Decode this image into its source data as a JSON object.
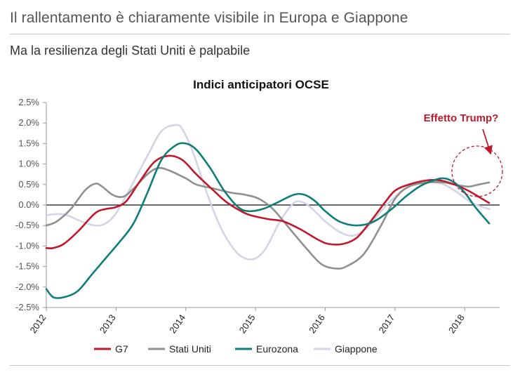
{
  "header": {
    "title": "Il rallentamento è chiaramente visibile in Europa e Giappone",
    "subtitle": "Ma la resilienza degli Stati Uniti è palpabile"
  },
  "chart_data": {
    "type": "line",
    "title": "Indici anticipatori OCSE",
    "xlabel": "",
    "ylabel": "",
    "ylim": [
      -2.5,
      2.5
    ],
    "xlim": [
      2012,
      2018.5
    ],
    "y_ticks": [
      2.5,
      2.0,
      1.5,
      1.0,
      0.5,
      0.0,
      -0.5,
      -1.0,
      -1.5,
      -2.0,
      -2.5
    ],
    "y_tick_labels": [
      "2.5%",
      "2.0%",
      "1.5%",
      "1.0%",
      "0.5%",
      "0.0%",
      "-0.5%",
      "-1.0%",
      "-1.5%",
      "-2.0%",
      "-2.5%"
    ],
    "x_ticks": [
      2012,
      2013,
      2014,
      2015,
      2016,
      2017,
      2018
    ],
    "x_tick_labels": [
      "2012",
      "2013",
      "2014",
      "2015",
      "2016",
      "2017",
      "2018"
    ],
    "annotation": {
      "text": "Effetto Trump?",
      "target": {
        "x": 2018.3,
        "y": 0.55
      }
    },
    "series": [
      {
        "name": "G7",
        "color": "#c0182c",
        "points": [
          [
            2012.0,
            -1.05
          ],
          [
            2012.1,
            -1.05
          ],
          [
            2012.25,
            -0.95
          ],
          [
            2012.45,
            -0.65
          ],
          [
            2012.7,
            -0.2
          ],
          [
            2012.85,
            -0.1
          ],
          [
            2013.0,
            -0.05
          ],
          [
            2013.15,
            0.1
          ],
          [
            2013.35,
            0.6
          ],
          [
            2013.55,
            1.05
          ],
          [
            2013.75,
            1.2
          ],
          [
            2013.95,
            1.1
          ],
          [
            2014.15,
            0.75
          ],
          [
            2014.4,
            0.35
          ],
          [
            2014.6,
            0.05
          ],
          [
            2014.85,
            -0.2
          ],
          [
            2015.0,
            -0.28
          ],
          [
            2015.2,
            -0.35
          ],
          [
            2015.4,
            -0.4
          ],
          [
            2015.65,
            -0.6
          ],
          [
            2015.9,
            -0.85
          ],
          [
            2016.05,
            -0.95
          ],
          [
            2016.25,
            -0.95
          ],
          [
            2016.45,
            -0.8
          ],
          [
            2016.65,
            -0.4
          ],
          [
            2016.85,
            0.05
          ],
          [
            2017.0,
            0.35
          ],
          [
            2017.2,
            0.5
          ],
          [
            2017.45,
            0.6
          ],
          [
            2017.65,
            0.6
          ],
          [
            2017.85,
            0.5
          ],
          [
            2018.05,
            0.35
          ],
          [
            2018.2,
            0.2
          ],
          [
            2018.3,
            0.1
          ],
          [
            2018.35,
            0.05
          ]
        ]
      },
      {
        "name": "Stati Uniti",
        "color": "#909090",
        "points": [
          [
            2012.0,
            -0.5
          ],
          [
            2012.15,
            -0.4
          ],
          [
            2012.35,
            -0.1
          ],
          [
            2012.55,
            0.35
          ],
          [
            2012.7,
            0.52
          ],
          [
            2012.8,
            0.45
          ],
          [
            2012.95,
            0.25
          ],
          [
            2013.1,
            0.2
          ],
          [
            2013.25,
            0.4
          ],
          [
            2013.45,
            0.75
          ],
          [
            2013.6,
            0.9
          ],
          [
            2013.75,
            0.85
          ],
          [
            2014.0,
            0.65
          ],
          [
            2014.15,
            0.5
          ],
          [
            2014.4,
            0.4
          ],
          [
            2014.65,
            0.3
          ],
          [
            2014.85,
            0.25
          ],
          [
            2015.05,
            0.15
          ],
          [
            2015.25,
            -0.1
          ],
          [
            2015.5,
            -0.6
          ],
          [
            2015.75,
            -1.1
          ],
          [
            2015.95,
            -1.45
          ],
          [
            2016.15,
            -1.55
          ],
          [
            2016.3,
            -1.5
          ],
          [
            2016.55,
            -1.2
          ],
          [
            2016.8,
            -0.5
          ],
          [
            2017.0,
            0.15
          ],
          [
            2017.2,
            0.45
          ],
          [
            2017.45,
            0.55
          ],
          [
            2017.7,
            0.55
          ],
          [
            2017.85,
            0.5
          ],
          [
            2018.05,
            0.45
          ],
          [
            2018.2,
            0.5
          ],
          [
            2018.35,
            0.55
          ]
        ]
      },
      {
        "name": "Eurozona",
        "color": "#0f7d78",
        "points": [
          [
            2012.0,
            -2.05
          ],
          [
            2012.1,
            -2.25
          ],
          [
            2012.25,
            -2.25
          ],
          [
            2012.45,
            -2.1
          ],
          [
            2012.65,
            -1.7
          ],
          [
            2012.85,
            -1.3
          ],
          [
            2013.05,
            -0.9
          ],
          [
            2013.25,
            -0.45
          ],
          [
            2013.45,
            0.3
          ],
          [
            2013.65,
            1.1
          ],
          [
            2013.85,
            1.45
          ],
          [
            2014.0,
            1.5
          ],
          [
            2014.15,
            1.35
          ],
          [
            2014.35,
            0.9
          ],
          [
            2014.55,
            0.35
          ],
          [
            2014.75,
            -0.05
          ],
          [
            2014.9,
            -0.15
          ],
          [
            2015.1,
            -0.1
          ],
          [
            2015.3,
            0.05
          ],
          [
            2015.55,
            0.25
          ],
          [
            2015.7,
            0.25
          ],
          [
            2015.85,
            0.1
          ],
          [
            2016.0,
            -0.15
          ],
          [
            2016.2,
            -0.4
          ],
          [
            2016.45,
            -0.5
          ],
          [
            2016.7,
            -0.4
          ],
          [
            2016.95,
            -0.1
          ],
          [
            2017.15,
            0.2
          ],
          [
            2017.35,
            0.45
          ],
          [
            2017.55,
            0.6
          ],
          [
            2017.7,
            0.65
          ],
          [
            2017.85,
            0.55
          ],
          [
            2018.0,
            0.3
          ],
          [
            2018.15,
            -0.05
          ],
          [
            2018.35,
            -0.45
          ]
        ]
      },
      {
        "name": "Giappone",
        "color": "#d2d5e6",
        "points": [
          [
            2012.0,
            -0.25
          ],
          [
            2012.15,
            -0.22
          ],
          [
            2012.3,
            -0.25
          ],
          [
            2012.5,
            -0.4
          ],
          [
            2012.7,
            -0.5
          ],
          [
            2012.85,
            -0.45
          ],
          [
            2013.0,
            -0.2
          ],
          [
            2013.2,
            0.4
          ],
          [
            2013.45,
            1.2
          ],
          [
            2013.65,
            1.8
          ],
          [
            2013.85,
            1.95
          ],
          [
            2013.95,
            1.85
          ],
          [
            2014.1,
            1.3
          ],
          [
            2014.3,
            0.3
          ],
          [
            2014.5,
            -0.55
          ],
          [
            2014.7,
            -1.1
          ],
          [
            2014.85,
            -1.3
          ],
          [
            2015.0,
            -1.3
          ],
          [
            2015.15,
            -1.05
          ],
          [
            2015.35,
            -0.4
          ],
          [
            2015.55,
            0.05
          ],
          [
            2015.7,
            0.05
          ],
          [
            2015.85,
            -0.15
          ],
          [
            2016.0,
            -0.4
          ],
          [
            2016.2,
            -0.65
          ],
          [
            2016.4,
            -0.75
          ],
          [
            2016.6,
            -0.55
          ],
          [
            2016.8,
            -0.15
          ],
          [
            2017.0,
            0.2
          ],
          [
            2017.2,
            0.45
          ],
          [
            2017.5,
            0.55
          ],
          [
            2017.7,
            0.5
          ],
          [
            2017.9,
            0.3
          ],
          [
            2018.1,
            0.05
          ],
          [
            2018.35,
            -0.1
          ]
        ]
      }
    ]
  }
}
